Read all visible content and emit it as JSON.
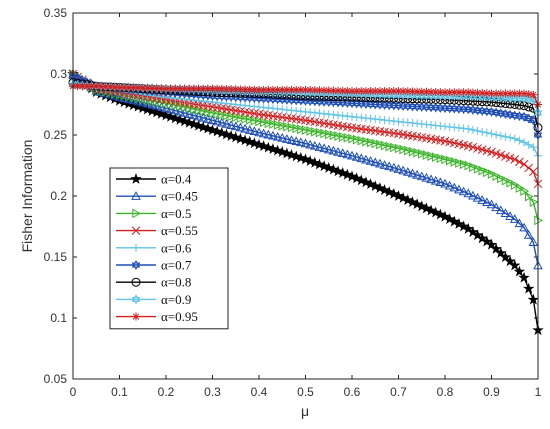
{
  "chart_data": {
    "type": "line",
    "xlabel": "μ",
    "ylabel": "Fisher Information",
    "xlim": [
      0,
      1
    ],
    "ylim": [
      0.05,
      0.35
    ],
    "xticks": [
      "0",
      "0.1",
      "0.2",
      "0.3",
      "0.4",
      "0.5",
      "0.6",
      "0.7",
      "0.8",
      "0.9",
      "1"
    ],
    "yticks": [
      "0.05",
      "0.1",
      "0.15",
      "0.2",
      "0.25",
      "0.3",
      "0.35"
    ],
    "legend_position": "left-middle",
    "x": [
      0,
      0.05,
      0.1,
      0.2,
      0.3,
      0.4,
      0.5,
      0.6,
      0.7,
      0.8,
      0.85,
      0.9,
      0.95,
      0.97,
      0.99,
      1
    ],
    "series": [
      {
        "name": "α=0.4",
        "color": "#000000",
        "marker": "star",
        "values": [
          0.3,
          0.285,
          0.278,
          0.266,
          0.254,
          0.242,
          0.23,
          0.216,
          0.2,
          0.183,
          0.173,
          0.16,
          0.143,
          0.133,
          0.115,
          0.09
        ]
      },
      {
        "name": "α=0.45",
        "color": "#1f4fb5",
        "marker": "triangle",
        "values": [
          0.3,
          0.286,
          0.281,
          0.272,
          0.262,
          0.252,
          0.243,
          0.233,
          0.222,
          0.21,
          0.202,
          0.193,
          0.181,
          0.174,
          0.162,
          0.143
        ]
      },
      {
        "name": "α=0.5",
        "color": "#3cb52a",
        "marker": "triangle-right",
        "values": [
          0.3,
          0.287,
          0.283,
          0.276,
          0.268,
          0.261,
          0.254,
          0.247,
          0.239,
          0.23,
          0.225,
          0.218,
          0.209,
          0.204,
          0.195,
          0.18
        ]
      },
      {
        "name": "α=0.55",
        "color": "#d42020",
        "marker": "x",
        "values": [
          0.3,
          0.288,
          0.285,
          0.279,
          0.273,
          0.267,
          0.262,
          0.256,
          0.251,
          0.245,
          0.241,
          0.236,
          0.23,
          0.226,
          0.22,
          0.21
        ]
      },
      {
        "name": "α=0.6",
        "color": "#5fc4e6",
        "marker": "plus",
        "values": [
          0.295,
          0.288,
          0.286,
          0.281,
          0.277,
          0.273,
          0.269,
          0.265,
          0.261,
          0.257,
          0.255,
          0.251,
          0.247,
          0.244,
          0.24,
          0.233
        ]
      },
      {
        "name": "α=0.7",
        "color": "#1f4fb5",
        "marker": "hexagram",
        "values": [
          0.298,
          0.29,
          0.288,
          0.285,
          0.282,
          0.28,
          0.278,
          0.276,
          0.274,
          0.272,
          0.271,
          0.269,
          0.266,
          0.265,
          0.262,
          0.25
        ]
      },
      {
        "name": "α=0.8",
        "color": "#000000",
        "marker": "circle",
        "values": [
          0.293,
          0.29,
          0.289,
          0.287,
          0.285,
          0.284,
          0.282,
          0.281,
          0.28,
          0.279,
          0.278,
          0.277,
          0.275,
          0.274,
          0.272,
          0.256
        ]
      },
      {
        "name": "α=0.9",
        "color": "#5fc4e6",
        "marker": "hexagram",
        "values": [
          0.291,
          0.29,
          0.289,
          0.288,
          0.287,
          0.286,
          0.285,
          0.284,
          0.283,
          0.282,
          0.282,
          0.281,
          0.28,
          0.28,
          0.279,
          0.268
        ]
      },
      {
        "name": "α=0.95",
        "color": "#d42020",
        "marker": "asterisk",
        "values": [
          0.29,
          0.29,
          0.289,
          0.288,
          0.288,
          0.287,
          0.287,
          0.286,
          0.286,
          0.285,
          0.285,
          0.284,
          0.284,
          0.284,
          0.283,
          0.275
        ]
      }
    ]
  }
}
